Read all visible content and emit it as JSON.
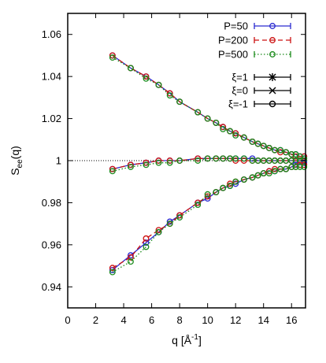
{
  "chart_data": {
    "type": "line",
    "xlabel": "q [Å",
    "xlabel_sup": "-1",
    "xlabel_close": "]",
    "ylabel_main": "S",
    "ylabel_sub": "ee",
    "ylabel_tail": "(q)",
    "xlim": [
      0,
      17
    ],
    "ylim": [
      0.93,
      1.07
    ],
    "xticks": [
      0,
      2,
      4,
      6,
      8,
      10,
      12,
      14,
      16
    ],
    "yticks": [
      0.94,
      0.96,
      0.98,
      1,
      1.02,
      1.04,
      1.06
    ],
    "ytick_labels": [
      "0.94",
      "0.96",
      "0.98",
      "1",
      "1.02",
      "1.04",
      "1.06"
    ],
    "reference_line_y": 1,
    "legend_position": "top-right",
    "legend_P": [
      {
        "name": "P=50",
        "color": "#2a2ad0",
        "dash": "solid"
      },
      {
        "name": "P=200",
        "color": "#cc1111",
        "dash": "dashed"
      },
      {
        "name": "P=500",
        "color": "#1a8a1a",
        "dash": "dotted"
      }
    ],
    "legend_xi": [
      {
        "name": "ξ=1",
        "marker": "star"
      },
      {
        "name": "ξ=0",
        "marker": "cross"
      },
      {
        "name": "ξ=-1",
        "marker": "circle"
      }
    ],
    "x": [
      3.2,
      4.5,
      5.6,
      6.5,
      7.3,
      8.0,
      9.3,
      10.0,
      10.6,
      11.1,
      11.6,
      12.0,
      12.6,
      13.2,
      13.6,
      14.0,
      14.4,
      14.8,
      15.2,
      15.6,
      16.0,
      16.3,
      16.6,
      16.9
    ],
    "series": [
      {
        "P": "P=50",
        "xi": "ξ=1",
        "values": [
          1.05,
          1.044,
          1.04,
          1.036,
          1.032,
          1.028,
          1.023,
          1.02,
          1.018,
          1.016,
          1.014,
          1.013,
          1.011,
          1.009,
          1.008,
          1.007,
          1.006,
          1.005,
          1.005,
          1.004,
          1.003,
          1.003,
          1.002,
          1.002
        ]
      },
      {
        "P": "P=200",
        "xi": "ξ=1",
        "values": [
          1.05,
          1.044,
          1.04,
          1.036,
          1.032,
          1.028,
          1.023,
          1.02,
          1.018,
          1.016,
          1.014,
          1.013,
          1.011,
          1.009,
          1.008,
          1.007,
          1.006,
          1.005,
          1.004,
          1.004,
          1.003,
          1.002,
          1.002,
          1.002
        ]
      },
      {
        "P": "P=500",
        "xi": "ξ=1",
        "values": [
          1.049,
          1.044,
          1.039,
          1.036,
          1.031,
          1.028,
          1.023,
          1.02,
          1.018,
          1.015,
          1.014,
          1.012,
          1.011,
          1.009,
          1.008,
          1.007,
          1.006,
          1.005,
          1.005,
          1.004,
          1.003,
          1.003,
          1.002,
          1.001
        ]
      },
      {
        "P": "P=50",
        "xi": "ξ=0",
        "values": [
          0.996,
          0.998,
          0.999,
          1.0,
          1.0,
          1.0,
          1.001,
          1.001,
          1.001,
          1.001,
          1.001,
          1.001,
          1.001,
          1.001,
          1.0,
          1.0,
          1.0,
          1.0,
          1.0,
          1.0,
          1.0,
          1.0,
          1.0,
          1.0
        ]
      },
      {
        "P": "P=200",
        "xi": "ξ=0",
        "values": [
          0.996,
          0.998,
          0.999,
          1.0,
          1.0,
          1.0,
          1.001,
          1.001,
          1.001,
          1.001,
          1.001,
          1.0,
          1.0,
          1.0,
          1.0,
          1.0,
          1.0,
          1.0,
          1.0,
          1.0,
          1.0,
          1.0,
          1.0,
          1.0
        ]
      },
      {
        "P": "P=500",
        "xi": "ξ=0",
        "values": [
          0.995,
          0.997,
          0.998,
          0.999,
          0.999,
          1.0,
          1.0,
          1.001,
          1.001,
          1.001,
          1.001,
          1.001,
          1.001,
          1.0,
          1.0,
          1.0,
          1.0,
          1.0,
          1.0,
          1.0,
          1.0,
          1.0,
          1.0,
          1.0
        ]
      },
      {
        "P": "P=50",
        "xi": "ξ=-1",
        "values": [
          0.948,
          0.955,
          0.961,
          0.966,
          0.971,
          0.974,
          0.98,
          0.982,
          0.985,
          0.987,
          0.988,
          0.989,
          0.991,
          0.992,
          0.993,
          0.994,
          0.995,
          0.995,
          0.996,
          0.996,
          0.997,
          0.998,
          0.998,
          0.999
        ]
      },
      {
        "P": "P=200",
        "xi": "ξ=-1",
        "values": [
          0.949,
          0.954,
          0.963,
          0.967,
          0.97,
          0.974,
          0.98,
          0.983,
          0.985,
          0.987,
          0.989,
          0.99,
          0.991,
          0.992,
          0.993,
          0.994,
          0.995,
          0.996,
          0.996,
          0.996,
          0.997,
          0.997,
          0.998,
          0.998
        ]
      },
      {
        "P": "P=500",
        "xi": "ξ=-1",
        "values": [
          0.947,
          0.952,
          0.959,
          0.966,
          0.97,
          0.973,
          0.979,
          0.984,
          0.985,
          0.987,
          0.988,
          0.99,
          0.991,
          0.992,
          0.993,
          0.994,
          0.994,
          0.995,
          0.996,
          0.996,
          0.997,
          0.997,
          0.997,
          0.997
        ]
      }
    ]
  }
}
